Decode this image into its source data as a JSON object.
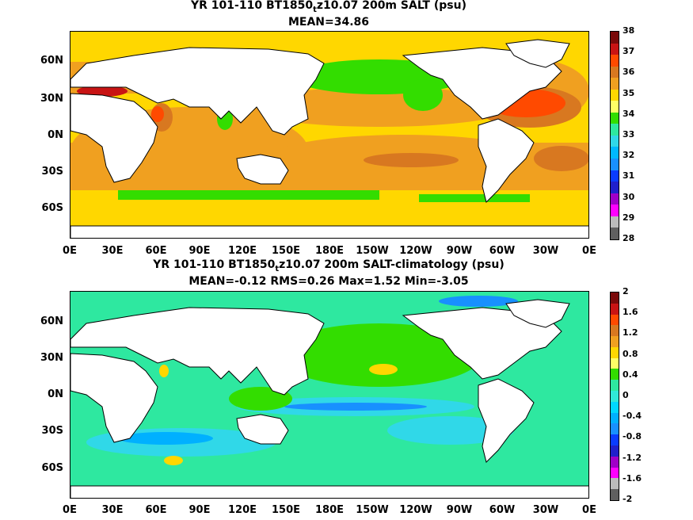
{
  "panel1": {
    "title_pre": "YR 101-110 BT1850",
    "title_sub": "t",
    "title_post": "z10.07 200m SALT (psu)",
    "stats": "MEAN=34.86",
    "colorbar": {
      "labels": [
        "38",
        "37",
        "36",
        "35",
        "34",
        "33",
        "32",
        "31",
        "30",
        "29",
        "28"
      ],
      "colors": [
        "#7a0a0a",
        "#c81414",
        "#ff4a00",
        "#d87820",
        "#f0a020",
        "#ffd700",
        "#ffff66",
        "#33dd00",
        "#2ee8a0",
        "#30d8e8",
        "#00b8ff",
        "#1890ff",
        "#0a3cff",
        "#2020cc",
        "#a000c8",
        "#ff00ff",
        "#bbbbbb",
        "#606060"
      ]
    },
    "lat_labels": [
      "60N",
      "30N",
      "0N",
      "30S",
      "60S"
    ],
    "lon_labels": [
      "0E",
      "30E",
      "60E",
      "90E",
      "120E",
      "150E",
      "180E",
      "150W",
      "120W",
      "90W",
      "60W",
      "30W",
      "0E"
    ]
  },
  "panel2": {
    "title_pre": "YR 101-110 BT1850",
    "title_sub": "t",
    "title_post": "z10.07 200m SALT-climatology (psu)",
    "stats": "MEAN=-0.12   RMS=0.26   Max=1.52   Min=-3.05",
    "colorbar": {
      "labels": [
        "2",
        "1.6",
        "1.2",
        "0.8",
        "0.4",
        "0",
        "-0.4",
        "-0.8",
        "-1.2",
        "-1.6",
        "-2"
      ],
      "colors": [
        "#7a0a0a",
        "#c81414",
        "#ff4a00",
        "#d87820",
        "#f0a020",
        "#ffd700",
        "#ffff66",
        "#33dd00",
        "#2ee8a0",
        "#30e8d8",
        "#00d8ff",
        "#00b0ff",
        "#1890ff",
        "#0a3cff",
        "#2020cc",
        "#a000c8",
        "#ff00ff",
        "#bbbbbb",
        "#606060"
      ]
    },
    "lat_labels": [
      "60N",
      "30N",
      "0N",
      "30S",
      "60S"
    ],
    "lon_labels": [
      "0E",
      "30E",
      "60E",
      "90E",
      "120E",
      "150E",
      "180E",
      "150W",
      "120W",
      "90W",
      "60W",
      "30W",
      "0E"
    ]
  }
}
